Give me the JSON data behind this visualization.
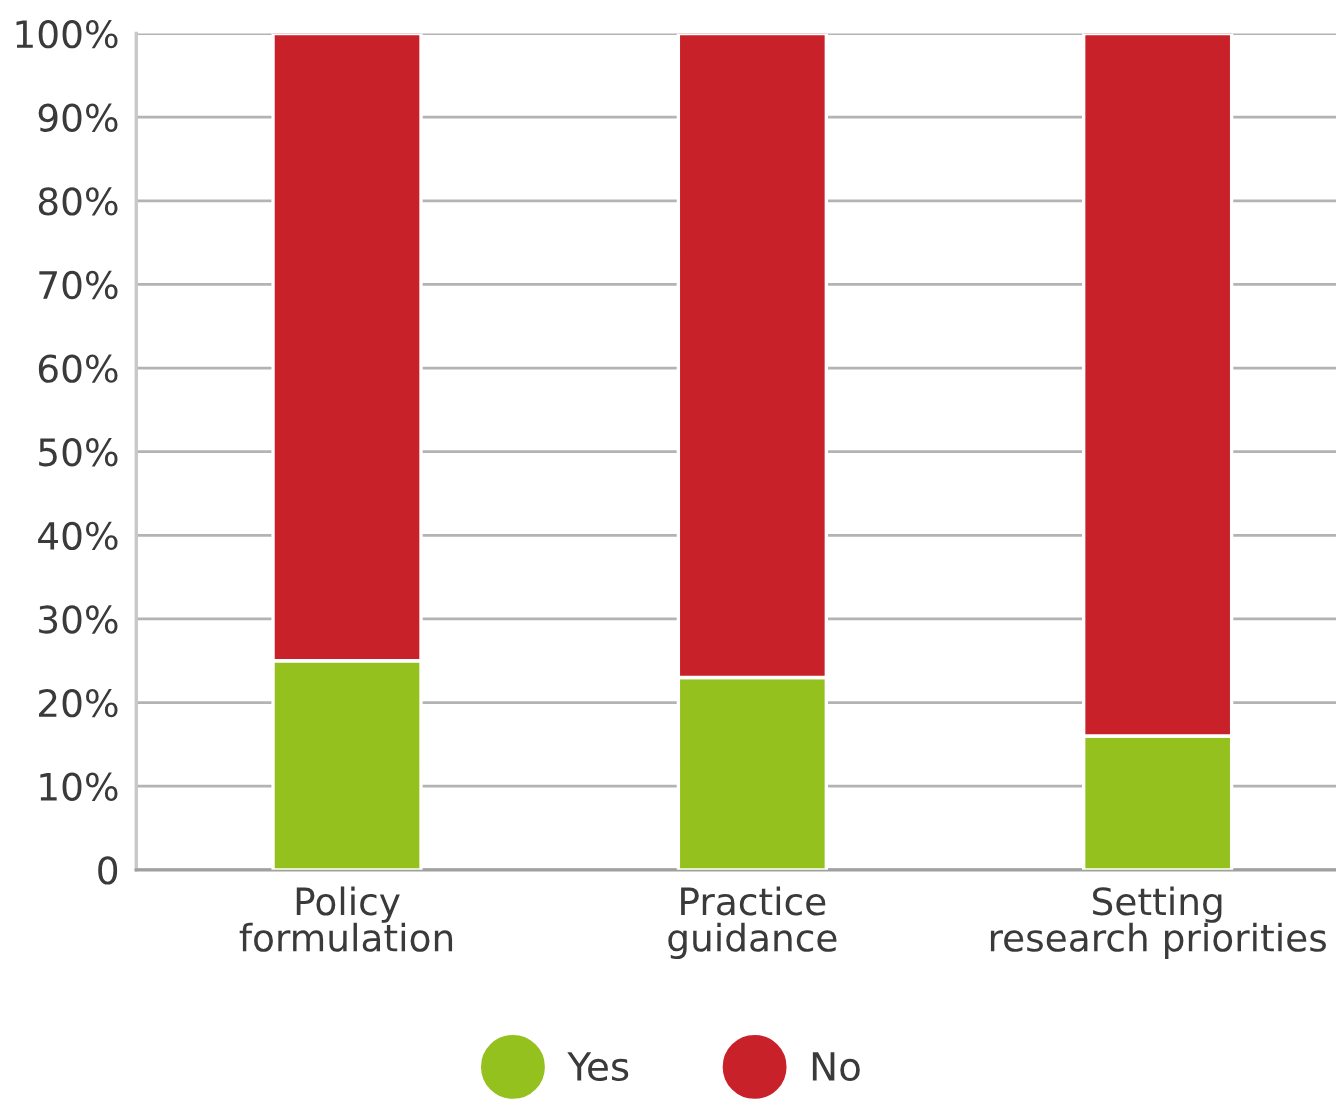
{
  "chart_data": {
    "type": "bar",
    "stacked": true,
    "categories": [
      "Policy\nformulation",
      "Practice\nguidance",
      "Setting\nresearch priorities"
    ],
    "series": [
      {
        "name": "Yes",
        "color": "#95c11f",
        "values": [
          25,
          23,
          16
        ]
      },
      {
        "name": "No",
        "color": "#c9212a",
        "values": [
          75,
          77,
          84
        ]
      }
    ],
    "ylim": [
      0,
      100
    ],
    "yticks": [
      0,
      {
        "value": 10,
        "label": "10%"
      },
      {
        "value": 20,
        "label": "20%"
      },
      {
        "value": 30,
        "label": "30%"
      },
      {
        "value": 40,
        "label": "40%"
      },
      {
        "value": 50,
        "label": "50%"
      },
      {
        "value": 60,
        "label": "60%"
      },
      {
        "value": 70,
        "label": "70%"
      },
      {
        "value": 80,
        "label": "80%"
      },
      {
        "value": 90,
        "label": "90%"
      },
      {
        "value": 100,
        "label": "100%"
      }
    ],
    "grid": "y",
    "legend": "bottom",
    "marker": "circle"
  }
}
